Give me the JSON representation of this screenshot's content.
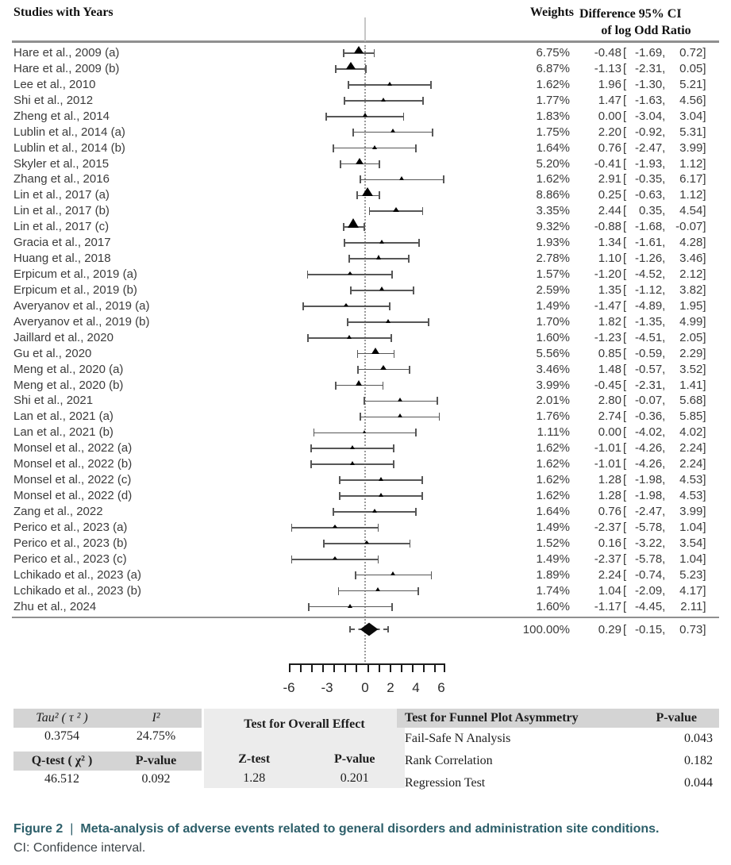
{
  "header": {
    "studies": "Studies with Years",
    "weights": "Weights",
    "diff_ci_line1": "Difference 95% CI",
    "diff_ci_line2": "of log Odd Ratio"
  },
  "chart_data": {
    "type": "forest",
    "effect_measure": "Difference of log Odd Ratio",
    "zero_line": 0,
    "x_axis": {
      "tick_labels": [
        -6,
        -3,
        0,
        2,
        4,
        6
      ]
    },
    "studies": [
      {
        "label": "Hare et al., 2009 (a)",
        "weight_pct": 6.75,
        "est": -0.48,
        "lo": -1.69,
        "hi": 0.72
      },
      {
        "label": "Hare et al., 2009 (b)",
        "weight_pct": 6.87,
        "est": -1.13,
        "lo": -2.31,
        "hi": 0.05
      },
      {
        "label": "Lee et al., 2010",
        "weight_pct": 1.62,
        "est": 1.96,
        "lo": -1.3,
        "hi": 5.21
      },
      {
        "label": "Shi et al., 2012",
        "weight_pct": 1.77,
        "est": 1.47,
        "lo": -1.63,
        "hi": 4.56
      },
      {
        "label": "Zheng et al., 2014",
        "weight_pct": 1.83,
        "est": 0.0,
        "lo": -3.04,
        "hi": 3.04
      },
      {
        "label": "Lublin et al., 2014 (a)",
        "weight_pct": 1.75,
        "est": 2.2,
        "lo": -0.92,
        "hi": 5.31
      },
      {
        "label": "Lublin et al., 2014 (b)",
        "weight_pct": 1.64,
        "est": 0.76,
        "lo": -2.47,
        "hi": 3.99
      },
      {
        "label": "Skyler et al., 2015",
        "weight_pct": 5.2,
        "est": -0.41,
        "lo": -1.93,
        "hi": 1.12
      },
      {
        "label": "Zhang et al., 2016",
        "weight_pct": 1.62,
        "est": 2.91,
        "lo": -0.35,
        "hi": 6.17
      },
      {
        "label": "Lin et al., 2017 (a)",
        "weight_pct": 8.86,
        "est": 0.25,
        "lo": -0.63,
        "hi": 1.12
      },
      {
        "label": "Lin et al., 2017 (b)",
        "weight_pct": 3.35,
        "est": 2.44,
        "lo": 0.35,
        "hi": 4.54
      },
      {
        "label": "Lin et al., 2017 (c)",
        "weight_pct": 9.32,
        "est": -0.88,
        "lo": -1.68,
        "hi": -0.07
      },
      {
        "label": "Gracia et al., 2017",
        "weight_pct": 1.93,
        "est": 1.34,
        "lo": -1.61,
        "hi": 4.28
      },
      {
        "label": "Huang et al., 2018",
        "weight_pct": 2.78,
        "est": 1.1,
        "lo": -1.26,
        "hi": 3.46
      },
      {
        "label": "Erpicum et al., 2019 (a)",
        "weight_pct": 1.57,
        "est": -1.2,
        "lo": -4.52,
        "hi": 2.12
      },
      {
        "label": "Erpicum et al., 2019 (b)",
        "weight_pct": 2.59,
        "est": 1.35,
        "lo": -1.12,
        "hi": 3.82
      },
      {
        "label": "Averyanov et al., 2019 (a)",
        "weight_pct": 1.49,
        "est": -1.47,
        "lo": -4.89,
        "hi": 1.95
      },
      {
        "label": "Averyanov et al., 2019 (b)",
        "weight_pct": 1.7,
        "est": 1.82,
        "lo": -1.35,
        "hi": 4.99
      },
      {
        "label": "Jaillard et al., 2020",
        "weight_pct": 1.6,
        "est": -1.23,
        "lo": -4.51,
        "hi": 2.05
      },
      {
        "label": "Gu et al., 2020",
        "weight_pct": 5.56,
        "est": 0.85,
        "lo": -0.59,
        "hi": 2.29
      },
      {
        "label": "Meng et al., 2020 (a)",
        "weight_pct": 3.46,
        "est": 1.48,
        "lo": -0.57,
        "hi": 3.52
      },
      {
        "label": "Meng et al., 2020 (b)",
        "weight_pct": 3.99,
        "est": -0.45,
        "lo": -2.31,
        "hi": 1.41
      },
      {
        "label": "Shi et al., 2021",
        "weight_pct": 2.01,
        "est": 2.8,
        "lo": -0.07,
        "hi": 5.68
      },
      {
        "label": "Lan et al., 2021 (a)",
        "weight_pct": 1.76,
        "est": 2.74,
        "lo": -0.36,
        "hi": 5.85
      },
      {
        "label": "Lan et al., 2021 (b)",
        "weight_pct": 1.11,
        "est": 0.0,
        "lo": -4.02,
        "hi": 4.02
      },
      {
        "label": "Monsel et al., 2022 (a)",
        "weight_pct": 1.62,
        "est": -1.01,
        "lo": -4.26,
        "hi": 2.24
      },
      {
        "label": "Monsel et al., 2022 (b)",
        "weight_pct": 1.62,
        "est": -1.01,
        "lo": -4.26,
        "hi": 2.24
      },
      {
        "label": "Monsel et al., 2022 (c)",
        "weight_pct": 1.62,
        "est": 1.28,
        "lo": -1.98,
        "hi": 4.53
      },
      {
        "label": "Monsel et al., 2022 (d)",
        "weight_pct": 1.62,
        "est": 1.28,
        "lo": -1.98,
        "hi": 4.53
      },
      {
        "label": "Zang et al., 2022",
        "weight_pct": 1.64,
        "est": 0.76,
        "lo": -2.47,
        "hi": 3.99
      },
      {
        "label": "Perico et al., 2023 (a)",
        "weight_pct": 1.49,
        "est": -2.37,
        "lo": -5.78,
        "hi": 1.04
      },
      {
        "label": "Perico et al., 2023 (b)",
        "weight_pct": 1.52,
        "est": 0.16,
        "lo": -3.22,
        "hi": 3.54
      },
      {
        "label": "Perico et al., 2023 (c)",
        "weight_pct": 1.49,
        "est": -2.37,
        "lo": -5.78,
        "hi": 1.04
      },
      {
        "label": "Lchikado et al., 2023 (a)",
        "weight_pct": 1.89,
        "est": 2.24,
        "lo": -0.74,
        "hi": 5.23
      },
      {
        "label": "Lchikado et al., 2023 (b)",
        "weight_pct": 1.74,
        "est": 1.04,
        "lo": -2.09,
        "hi": 4.17
      },
      {
        "label": "Zhu et al., 2024",
        "weight_pct": 1.6,
        "est": -1.17,
        "lo": -4.45,
        "hi": 2.11
      }
    ],
    "overall": {
      "weight_pct": 100.0,
      "est": 0.29,
      "lo": -0.15,
      "hi": 0.73
    }
  },
  "stats": {
    "heterogeneity": {
      "tau2_label": "Tau² ( τ ² )",
      "i2_label": "I²",
      "tau2_value": "0.3754",
      "i2_value": "24.75%",
      "qtest_label": "Q-test ( χ² )",
      "pvalue_label": "P-value",
      "qtest_value": "46.512",
      "qtest_pvalue": "0.092"
    },
    "overall_effect": {
      "title": "Test for Overall Effect",
      "ztest_label": "Z-test",
      "pvalue_label": "P-value",
      "ztest_value": "1.28",
      "pvalue": "0.201"
    },
    "funnel": {
      "title": "Test for Funnel Plot Asymmetry",
      "pvalue_label": "P-value",
      "rows": [
        {
          "label": "Fail-Safe N Analysis",
          "pvalue": "0.043"
        },
        {
          "label": "Rank Correlation",
          "pvalue": "0.182"
        },
        {
          "label": "Regression Test",
          "pvalue": "0.044"
        }
      ]
    }
  },
  "caption": {
    "label": "Figure 2",
    "separator": "|",
    "title": "Meta-analysis of adverse events related to general disorders and administration site conditions.",
    "note": "CI: Confidence interval."
  }
}
